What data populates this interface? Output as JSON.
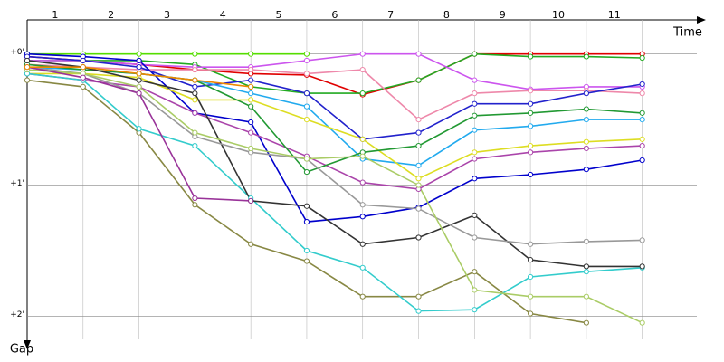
{
  "chart_data": {
    "type": "line",
    "x_label": "Time",
    "y_label": "Gap",
    "x": [
      0,
      1,
      2,
      3,
      4,
      5,
      6,
      7,
      8,
      9,
      10,
      11
    ],
    "xlim": [
      0,
      12.3
    ],
    "xticks": [
      1,
      2,
      3,
      4,
      5,
      6,
      7,
      8,
      9,
      10,
      11
    ],
    "ylim": [
      -0.26,
      2.28
    ],
    "y_inverted": true,
    "yticks": [
      {
        "value": 0,
        "label": "+0'"
      },
      {
        "value": 1,
        "label": "+1'"
      },
      {
        "value": 2,
        "label": "+2'"
      }
    ],
    "grid": true,
    "series": [
      {
        "name": "red",
        "color": "#e00000",
        "values": [
          0.02,
          0.05,
          0.08,
          0.12,
          0.15,
          0.16,
          0.31,
          0.2,
          0.0,
          0.0,
          0.0,
          0.0
        ]
      },
      {
        "name": "green",
        "color": "#22aa22",
        "values": [
          0.05,
          0.05,
          0.05,
          0.08,
          0.25,
          0.3,
          0.3,
          0.2,
          0.0,
          0.02,
          0.02,
          0.03
        ]
      },
      {
        "name": "lime",
        "color": "#55dd00",
        "values": [
          0.0,
          0.0,
          0.0,
          0.0,
          0.0,
          0.0,
          null,
          null,
          null,
          null,
          null,
          null
        ]
      },
      {
        "name": "violet",
        "color": "#cc55ee",
        "values": [
          0.05,
          0.05,
          0.08,
          0.1,
          0.1,
          0.05,
          0.0,
          0.0,
          0.2,
          0.27,
          0.25,
          0.25
        ]
      },
      {
        "name": "pink",
        "color": "#ee88aa",
        "values": [
          0.08,
          0.1,
          0.12,
          0.12,
          0.12,
          0.15,
          0.12,
          0.5,
          0.3,
          0.28,
          0.28,
          0.3
        ]
      },
      {
        "name": "navy",
        "color": "#0000cc",
        "values": [
          0.0,
          0.02,
          0.05,
          0.45,
          0.52,
          1.28,
          1.24,
          1.17,
          0.95,
          0.92,
          0.88,
          0.81
        ]
      },
      {
        "name": "blue",
        "color": "#2222cc",
        "values": [
          0.02,
          0.05,
          0.1,
          0.25,
          0.2,
          0.3,
          0.65,
          0.6,
          0.38,
          0.38,
          0.3,
          0.23
        ]
      },
      {
        "name": "cyan",
        "color": "#22aaee",
        "values": [
          0.1,
          0.12,
          0.15,
          0.2,
          0.3,
          0.4,
          0.8,
          0.85,
          0.58,
          0.55,
          0.5,
          0.5
        ]
      },
      {
        "name": "yellow",
        "color": "#dddd22",
        "values": [
          0.15,
          0.15,
          0.18,
          0.35,
          0.35,
          0.5,
          0.65,
          0.95,
          0.75,
          0.7,
          0.67,
          0.65
        ]
      },
      {
        "name": "purple",
        "color": "#aa44aa",
        "values": [
          0.15,
          0.2,
          0.25,
          0.45,
          0.6,
          0.78,
          0.98,
          1.03,
          0.8,
          0.75,
          0.72,
          0.7
        ]
      },
      {
        "name": "forest",
        "color": "#229933",
        "values": [
          0.08,
          0.12,
          0.15,
          0.2,
          0.4,
          0.9,
          0.75,
          0.7,
          0.47,
          0.45,
          0.42,
          0.45
        ]
      },
      {
        "name": "olive",
        "color": "#888844",
        "values": [
          0.2,
          0.25,
          0.6,
          1.15,
          1.45,
          1.58,
          1.85,
          1.85,
          1.66,
          1.98,
          2.05,
          null
        ]
      },
      {
        "name": "turquoise",
        "color": "#33cccc",
        "values": [
          0.15,
          0.2,
          0.57,
          0.7,
          1.1,
          1.5,
          1.63,
          1.96,
          1.95,
          1.7,
          1.66,
          1.63
        ]
      },
      {
        "name": "black",
        "color": "#333333",
        "values": [
          0.05,
          0.1,
          0.2,
          0.3,
          1.12,
          1.16,
          1.45,
          1.4,
          1.23,
          1.57,
          1.62,
          1.62
        ]
      },
      {
        "name": "gray",
        "color": "#999999",
        "values": [
          0.1,
          0.15,
          0.3,
          0.63,
          0.75,
          0.8,
          1.15,
          1.18,
          1.4,
          1.45,
          1.43,
          1.42
        ]
      },
      {
        "name": "light-green",
        "color": "#aacc66",
        "values": [
          0.12,
          0.15,
          0.25,
          0.6,
          0.72,
          0.8,
          0.78,
          1.0,
          1.8,
          1.85,
          1.85,
          2.05
        ]
      },
      {
        "name": "magenta",
        "color": "#993399",
        "values": [
          0.1,
          0.18,
          0.3,
          1.1,
          1.12,
          null,
          null,
          null,
          null,
          null,
          null,
          null
        ]
      },
      {
        "name": "orange",
        "color": "#ee8800",
        "values": [
          0.1,
          0.1,
          0.15,
          0.2,
          0.25,
          null,
          null,
          null,
          null,
          null,
          null,
          null
        ]
      }
    ]
  }
}
